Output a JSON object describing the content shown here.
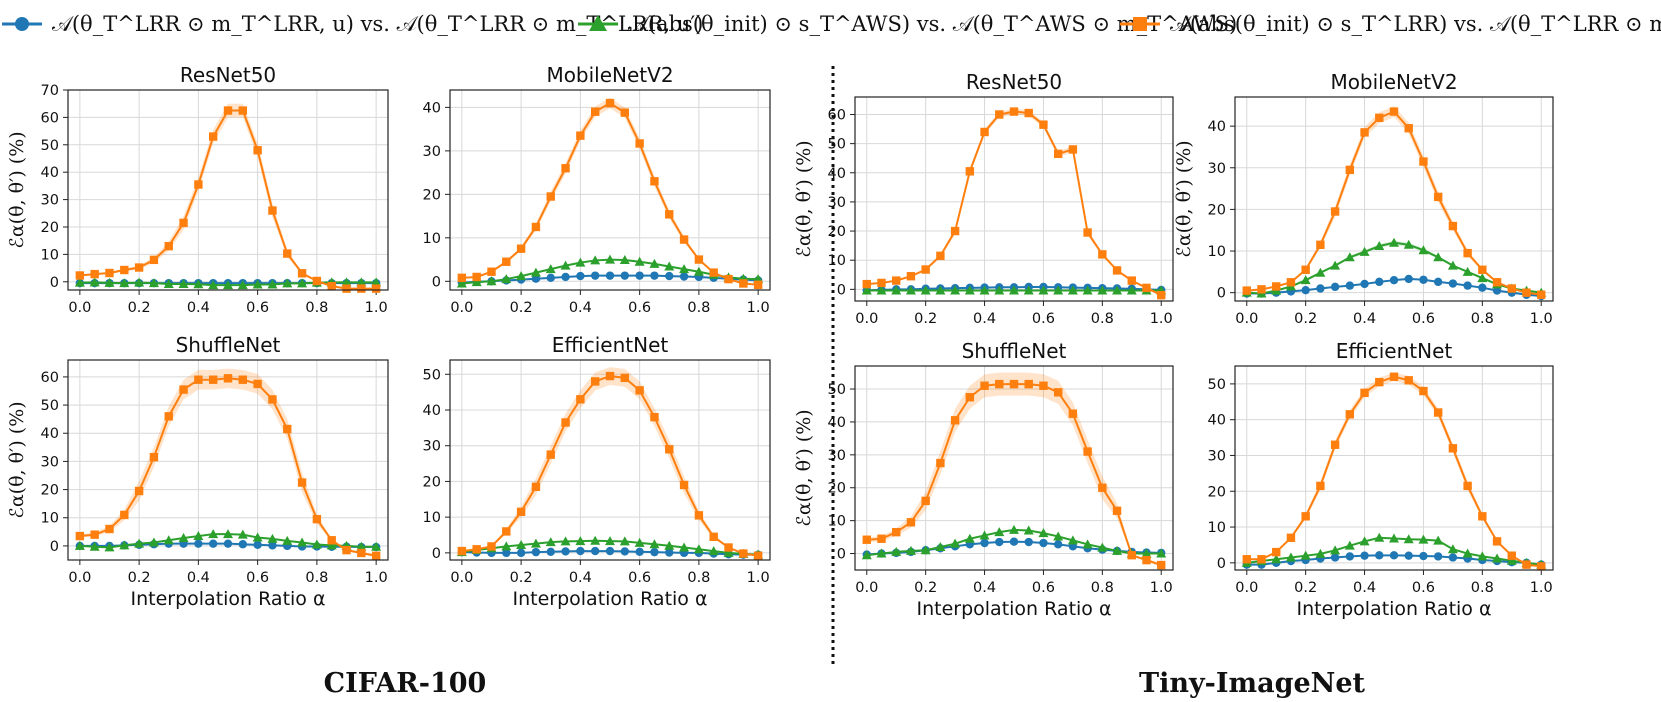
{
  "colors": {
    "blue": "#1f77b4",
    "green": "#2ca02c",
    "orange": "#ff7f0e"
  },
  "legend": [
    {
      "key": "blue",
      "marker": "circle",
      "label": "𝒜(θ_T^LRR ⊙ m_T^LRR, u)  vs.  𝒜(θ_T^LRR ⊙ m_T^LRR, u′)"
    },
    {
      "key": "green",
      "marker": "triangle",
      "label": "𝒜(abs(θ_init) ⊙ s_T^AWS)  vs.  𝒜(θ_T^AWS ⊙ m_T^AWS)"
    },
    {
      "key": "orange",
      "marker": "square",
      "label": "𝒜(abs(θ_init) ⊙ s_T^LRR)  vs.  𝒜(θ_T^LRR ⊙ m_T^LRR)"
    }
  ],
  "datasets": {
    "left": "CIFAR-100",
    "right": "Tiny-ImageNet"
  },
  "xlabel": "Interpolation Ratio α",
  "ylabel": "ℰα(θ, θ′) (%)",
  "chart_data": [
    {
      "type": "line",
      "dataset": "CIFAR-100",
      "title": "ResNet50",
      "ylim": [
        -3,
        70
      ],
      "yticks": [
        0,
        10,
        20,
        30,
        40,
        50,
        60,
        70
      ],
      "xticks": [
        0.0,
        0.2,
        0.4,
        0.6,
        0.8,
        1.0
      ],
      "x": [
        0.0,
        0.05,
        0.1,
        0.15,
        0.2,
        0.25,
        0.3,
        0.35,
        0.4,
        0.45,
        0.5,
        0.55,
        0.6,
        0.65,
        0.7,
        0.75,
        0.8,
        0.85,
        0.9,
        0.95,
        1.0
      ],
      "series": [
        {
          "name": "blue",
          "values": [
            -0.5,
            -0.5,
            -0.5,
            -0.5,
            -0.5,
            -0.5,
            -0.5,
            -0.5,
            -0.5,
            -0.5,
            -0.5,
            -0.5,
            -0.5,
            -0.5,
            -0.5,
            -0.5,
            -0.5,
            -0.5,
            -0.5,
            -0.5,
            -0.5
          ]
        },
        {
          "name": "green",
          "values": [
            -0.3,
            -0.2,
            -0.4,
            -0.5,
            -0.3,
            -0.5,
            -0.8,
            -0.8,
            -0.9,
            -1.2,
            -1.2,
            -1.2,
            -1.0,
            -1.0,
            -0.6,
            -0.6,
            -0.3,
            -0.2,
            -0.2,
            -0.2,
            -0.2
          ]
        },
        {
          "name": "orange",
          "values": [
            2.3,
            2.8,
            3.2,
            4.3,
            5.2,
            8.0,
            13.0,
            21.5,
            35.5,
            53.0,
            62.5,
            62.5,
            48.0,
            26.0,
            10.3,
            3.1,
            0.3,
            -1.6,
            -2.5,
            -2.5,
            -2.5
          ],
          "band": 2.5
        }
      ]
    },
    {
      "type": "line",
      "dataset": "CIFAR-100",
      "title": "MobileNetV2",
      "ylim": [
        -2,
        44
      ],
      "yticks": [
        0,
        10,
        20,
        30,
        40
      ],
      "xticks": [
        0.0,
        0.2,
        0.4,
        0.6,
        0.8,
        1.0
      ],
      "x": [
        0.0,
        0.05,
        0.1,
        0.15,
        0.2,
        0.25,
        0.3,
        0.35,
        0.4,
        0.45,
        0.5,
        0.55,
        0.6,
        0.65,
        0.7,
        0.75,
        0.8,
        0.85,
        0.9,
        0.95,
        1.0
      ],
      "series": [
        {
          "name": "blue",
          "values": [
            -0.3,
            -0.1,
            0.0,
            0.2,
            0.4,
            0.6,
            0.8,
            1.0,
            1.2,
            1.3,
            1.3,
            1.3,
            1.3,
            1.3,
            1.2,
            1.1,
            1.0,
            0.8,
            0.6,
            0.4,
            0.2
          ]
        },
        {
          "name": "green",
          "values": [
            -0.5,
            -0.2,
            0.0,
            0.5,
            1.2,
            2.0,
            2.8,
            3.6,
            4.3,
            4.8,
            5.0,
            4.9,
            4.5,
            4.0,
            3.4,
            2.8,
            2.2,
            1.5,
            0.9,
            0.6,
            0.5
          ]
        },
        {
          "name": "orange",
          "values": [
            0.8,
            1.0,
            2.2,
            4.5,
            7.5,
            12.5,
            19.5,
            26.0,
            33.5,
            39.0,
            41.0,
            38.8,
            31.7,
            23.0,
            15.4,
            9.6,
            5.0,
            2.0,
            0.5,
            -0.5,
            -0.8
          ],
          "band": 1.2
        }
      ]
    },
    {
      "type": "line",
      "dataset": "CIFAR-100",
      "title": "ShuffleNet",
      "ylim": [
        -5,
        66
      ],
      "yticks": [
        0,
        10,
        20,
        30,
        40,
        50,
        60
      ],
      "xticks": [
        0.0,
        0.2,
        0.4,
        0.6,
        0.8,
        1.0
      ],
      "x": [
        0.0,
        0.05,
        0.1,
        0.15,
        0.2,
        0.25,
        0.3,
        0.35,
        0.4,
        0.45,
        0.5,
        0.55,
        0.6,
        0.65,
        0.7,
        0.75,
        0.8,
        0.85,
        0.9,
        0.95,
        1.0
      ],
      "series": [
        {
          "name": "blue",
          "values": [
            0.0,
            0.0,
            0.0,
            0.2,
            0.4,
            0.6,
            0.8,
            0.8,
            0.8,
            0.8,
            0.8,
            0.6,
            0.4,
            0.2,
            0.0,
            -0.2,
            -0.2,
            -0.3,
            -0.3,
            -0.4,
            -0.4
          ]
        },
        {
          "name": "green",
          "values": [
            0.0,
            -0.3,
            -0.5,
            0.2,
            0.8,
            1.2,
            2.0,
            2.8,
            3.5,
            4.2,
            4.2,
            4.0,
            3.0,
            2.5,
            1.8,
            1.2,
            0.5,
            0.2,
            0.0,
            -0.3,
            -0.3
          ]
        },
        {
          "name": "orange",
          "values": [
            3.5,
            4.0,
            6.0,
            11.0,
            19.5,
            31.5,
            46.0,
            55.5,
            59.0,
            59.0,
            59.5,
            59.0,
            57.5,
            52.0,
            41.5,
            22.5,
            9.5,
            2.0,
            -1.5,
            -2.5,
            -3.5
          ],
          "band": 3.5
        }
      ]
    },
    {
      "type": "line",
      "dataset": "CIFAR-100",
      "title": "EfficientNet",
      "ylim": [
        -2,
        54
      ],
      "yticks": [
        0,
        10,
        20,
        30,
        40,
        50
      ],
      "xticks": [
        0.0,
        0.2,
        0.4,
        0.6,
        0.8,
        1.0
      ],
      "x": [
        0.0,
        0.05,
        0.1,
        0.15,
        0.2,
        0.25,
        0.3,
        0.35,
        0.4,
        0.45,
        0.5,
        0.55,
        0.6,
        0.65,
        0.7,
        0.75,
        0.8,
        0.85,
        0.9,
        0.95,
        1.0
      ],
      "series": [
        {
          "name": "blue",
          "values": [
            0.2,
            0.1,
            0.0,
            0.0,
            0.0,
            0.2,
            0.3,
            0.4,
            0.5,
            0.5,
            0.5,
            0.4,
            0.3,
            0.2,
            0.1,
            0.0,
            0.0,
            -0.2,
            -0.4,
            -0.5,
            -0.5
          ]
        },
        {
          "name": "green",
          "values": [
            0.2,
            0.8,
            1.3,
            1.8,
            2.2,
            2.6,
            3.0,
            3.2,
            3.3,
            3.4,
            3.3,
            3.2,
            2.8,
            2.4,
            2.0,
            1.5,
            1.0,
            0.5,
            0.0,
            -0.3,
            -0.5
          ]
        },
        {
          "name": "orange",
          "values": [
            0.5,
            1.0,
            1.8,
            6.0,
            11.5,
            18.5,
            27.5,
            36.5,
            43.0,
            48.0,
            49.5,
            49.0,
            45.5,
            38.0,
            29.0,
            19.0,
            10.5,
            4.5,
            1.5,
            -0.2,
            -0.8
          ],
          "band": 2.5
        }
      ]
    },
    {
      "type": "line",
      "dataset": "Tiny-ImageNet",
      "title": "ResNet50",
      "ylim": [
        -4,
        66
      ],
      "yticks": [
        0,
        10,
        20,
        30,
        40,
        50,
        60
      ],
      "xticks": [
        0.0,
        0.2,
        0.4,
        0.6,
        0.8,
        1.0
      ],
      "x": [
        0.0,
        0.05,
        0.1,
        0.15,
        0.2,
        0.25,
        0.3,
        0.35,
        0.4,
        0.45,
        0.5,
        0.55,
        0.6,
        0.65,
        0.7,
        0.75,
        0.8,
        0.85,
        0.9,
        0.95,
        1.0
      ],
      "series": [
        {
          "name": "blue",
          "values": [
            -0.3,
            -0.2,
            0.0,
            0.0,
            0.2,
            0.3,
            0.4,
            0.5,
            0.6,
            0.7,
            0.7,
            0.8,
            0.8,
            0.7,
            0.6,
            0.5,
            0.4,
            0.3,
            0.2,
            0.0,
            -0.2
          ]
        },
        {
          "name": "green",
          "values": [
            -0.4,
            -0.4,
            -0.4,
            -0.4,
            -0.4,
            -0.4,
            -0.4,
            -0.4,
            -0.4,
            -0.4,
            -0.4,
            -0.4,
            -0.4,
            -0.4,
            -0.4,
            -0.4,
            -0.4,
            -0.4,
            -0.4,
            -0.4,
            -0.4
          ]
        },
        {
          "name": "orange",
          "values": [
            1.8,
            2.2,
            3.0,
            4.5,
            6.8,
            11.5,
            20.0,
            40.5,
            54.0,
            60.0,
            61.0,
            60.5,
            56.5,
            46.5,
            48.0,
            19.5,
            12.0,
            6.5,
            3.0,
            0.5,
            -2.0
          ],
          "band": 1.0
        }
      ]
    },
    {
      "type": "line",
      "dataset": "Tiny-ImageNet",
      "title": "MobileNetV2",
      "ylim": [
        -2,
        47
      ],
      "yticks": [
        0,
        10,
        20,
        30,
        40
      ],
      "xticks": [
        0.0,
        0.2,
        0.4,
        0.6,
        0.8,
        1.0
      ],
      "x": [
        0.0,
        0.05,
        0.1,
        0.15,
        0.2,
        0.25,
        0.3,
        0.35,
        0.4,
        0.45,
        0.5,
        0.55,
        0.6,
        0.65,
        0.7,
        0.75,
        0.8,
        0.85,
        0.9,
        0.95,
        1.0
      ],
      "series": [
        {
          "name": "blue",
          "values": [
            -0.2,
            -0.2,
            0.0,
            0.3,
            0.6,
            1.0,
            1.4,
            1.7,
            2.1,
            2.6,
            3.0,
            3.3,
            3.1,
            2.6,
            2.2,
            1.7,
            1.2,
            0.5,
            0.0,
            -0.5,
            -0.8
          ]
        },
        {
          "name": "green",
          "values": [
            0.0,
            -0.2,
            0.5,
            1.5,
            3.0,
            4.8,
            6.5,
            8.5,
            9.8,
            11.2,
            12.0,
            11.5,
            10.2,
            8.5,
            6.5,
            5.0,
            3.5,
            2.0,
            1.0,
            0.5,
            0.0
          ],
          "band": 0.8
        },
        {
          "name": "orange",
          "values": [
            0.5,
            0.8,
            1.5,
            2.5,
            5.5,
            11.5,
            19.5,
            29.5,
            38.5,
            42.0,
            43.5,
            39.5,
            31.5,
            23.0,
            16.0,
            9.5,
            5.5,
            2.5,
            1.0,
            0.0,
            -0.5
          ],
          "band": 1.3
        }
      ]
    },
    {
      "type": "line",
      "dataset": "Tiny-ImageNet",
      "title": "ShuffleNet",
      "ylim": [
        -5,
        57
      ],
      "yticks": [
        0,
        10,
        20,
        30,
        40,
        50
      ],
      "xticks": [
        0.0,
        0.2,
        0.4,
        0.6,
        0.8,
        1.0
      ],
      "x": [
        0.0,
        0.05,
        0.1,
        0.15,
        0.2,
        0.25,
        0.3,
        0.35,
        0.4,
        0.45,
        0.5,
        0.55,
        0.6,
        0.65,
        0.7,
        0.75,
        0.8,
        0.85,
        0.9,
        0.95,
        1.0
      ],
      "series": [
        {
          "name": "blue",
          "values": [
            -0.3,
            0.0,
            0.2,
            0.5,
            1.0,
            1.6,
            2.2,
            2.8,
            3.2,
            3.5,
            3.6,
            3.5,
            3.2,
            2.8,
            2.2,
            1.6,
            1.2,
            0.8,
            0.5,
            0.3,
            0.2
          ]
        },
        {
          "name": "green",
          "values": [
            -0.5,
            0.0,
            0.5,
            0.8,
            1.0,
            2.0,
            3.0,
            4.5,
            5.5,
            6.5,
            7.2,
            7.0,
            6.2,
            5.2,
            4.0,
            2.8,
            1.8,
            0.8,
            0.0,
            0.0,
            0.0
          ]
        },
        {
          "name": "orange",
          "values": [
            4.2,
            4.5,
            6.5,
            9.5,
            16.0,
            27.5,
            40.5,
            47.5,
            51.0,
            51.5,
            51.5,
            51.5,
            51.0,
            49.0,
            42.5,
            31.0,
            20.0,
            13.0,
            -0.5,
            -2.0,
            -3.5
          ],
          "band": 3.5
        }
      ]
    },
    {
      "type": "line",
      "dataset": "Tiny-ImageNet",
      "title": "EfficientNet",
      "ylim": [
        -2,
        55
      ],
      "yticks": [
        0,
        10,
        20,
        30,
        40,
        50
      ],
      "xticks": [
        0.0,
        0.2,
        0.4,
        0.6,
        0.8,
        1.0
      ],
      "x": [
        0.0,
        0.05,
        0.1,
        0.15,
        0.2,
        0.25,
        0.3,
        0.35,
        0.4,
        0.45,
        0.5,
        0.55,
        0.6,
        0.65,
        0.7,
        0.75,
        0.8,
        0.85,
        0.9,
        0.95,
        1.0
      ],
      "series": [
        {
          "name": "blue",
          "values": [
            -0.5,
            -0.5,
            0.0,
            0.5,
            0.8,
            1.2,
            1.5,
            1.8,
            2.0,
            2.1,
            2.1,
            2.0,
            1.9,
            1.8,
            1.5,
            1.2,
            0.8,
            0.5,
            0.2,
            0.0,
            -0.5
          ]
        },
        {
          "name": "green",
          "values": [
            0.0,
            0.5,
            1.0,
            1.5,
            2.0,
            2.5,
            3.5,
            4.8,
            6.0,
            7.0,
            6.8,
            6.6,
            6.5,
            6.2,
            3.8,
            2.6,
            1.8,
            1.2,
            0.6,
            0.0,
            -0.5
          ]
        },
        {
          "name": "orange",
          "values": [
            1.0,
            1.0,
            3.0,
            7.0,
            13.0,
            21.5,
            33.0,
            41.5,
            47.5,
            50.5,
            52.0,
            51.0,
            48.0,
            42.0,
            32.0,
            21.5,
            13.0,
            6.0,
            2.0,
            -0.5,
            -1.0
          ],
          "band": 1.2
        }
      ]
    }
  ]
}
